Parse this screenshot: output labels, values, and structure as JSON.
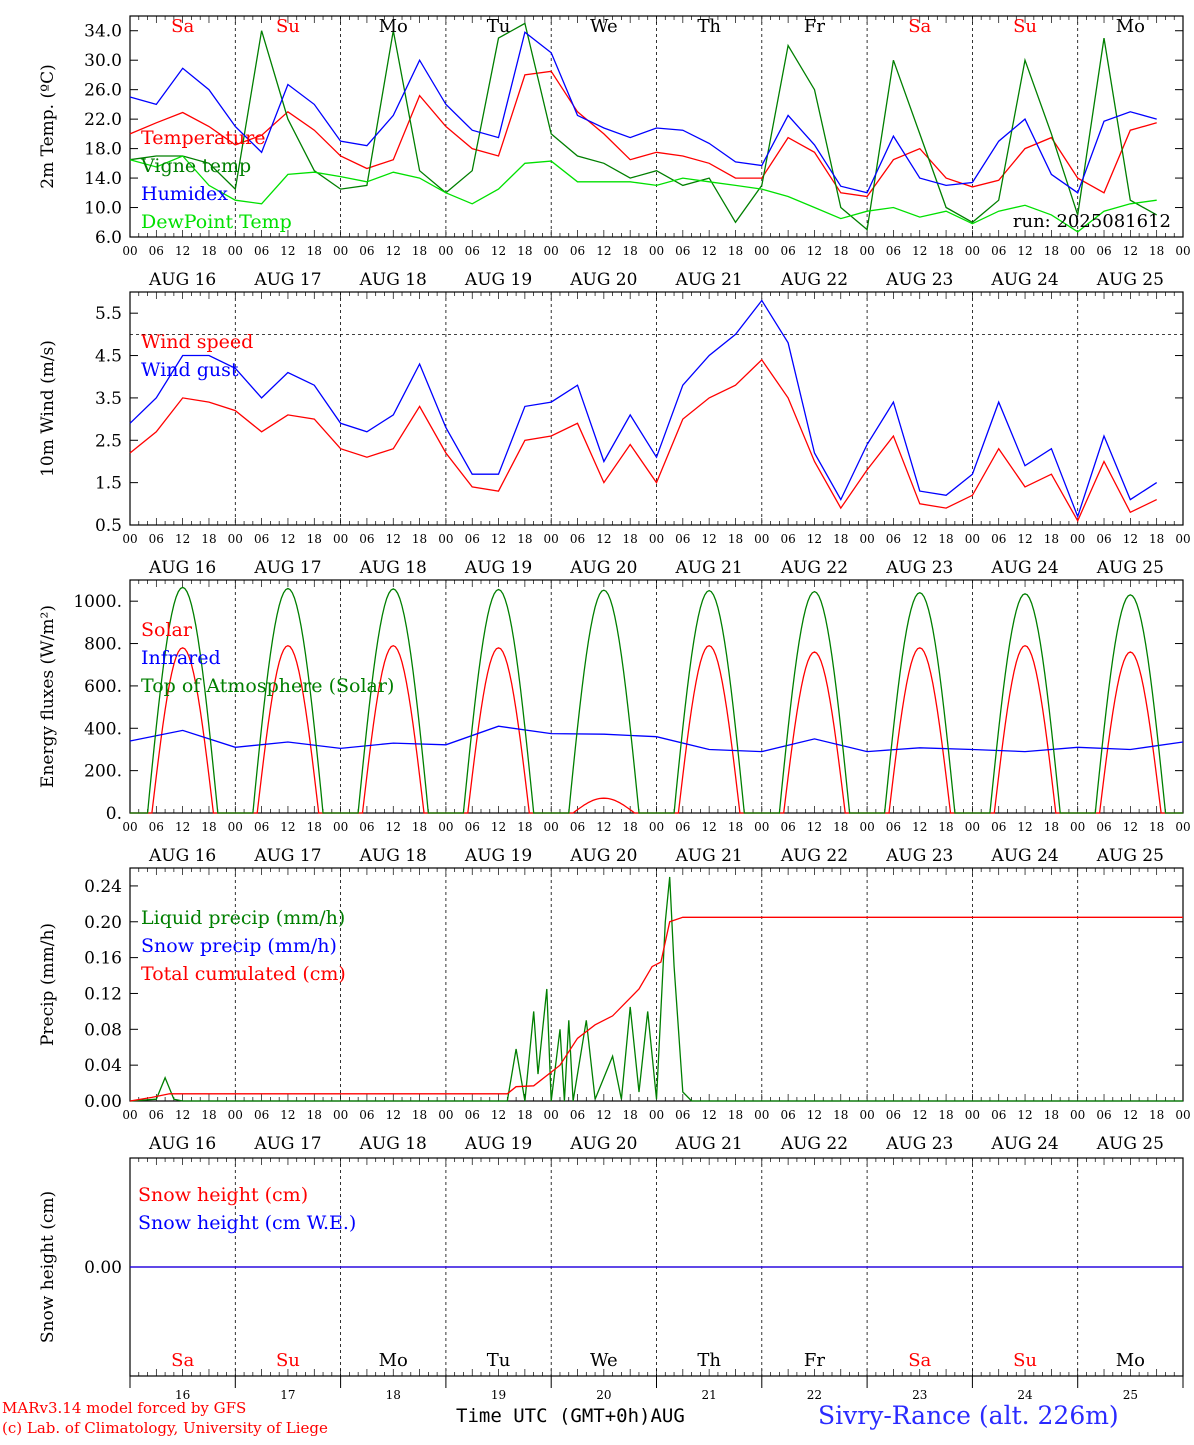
{
  "footer": {
    "model_credit": "MARv3.14 model forced by GFS",
    "lab_credit": "(c) Lab. of Climatology, University of Liege",
    "x_title": "Time UTC (GMT+0h)AUG",
    "station": "Sivry-Rance (alt. 226m)"
  },
  "days": [
    {
      "abbr": "Sa",
      "date": "AUG 16",
      "num": "16",
      "weekend": true
    },
    {
      "abbr": "Su",
      "date": "AUG 17",
      "num": "17",
      "weekend": true
    },
    {
      "abbr": "Mo",
      "date": "AUG 18",
      "num": "18",
      "weekend": false
    },
    {
      "abbr": "Tu",
      "date": "AUG 19",
      "num": "19",
      "weekend": false
    },
    {
      "abbr": "We",
      "date": "AUG 20",
      "num": "20",
      "weekend": false
    },
    {
      "abbr": "Th",
      "date": "AUG 21",
      "num": "21",
      "weekend": false
    },
    {
      "abbr": "Fr",
      "date": "AUG 22",
      "num": "22",
      "weekend": false
    },
    {
      "abbr": "Sa",
      "date": "AUG 23",
      "num": "23",
      "weekend": true
    },
    {
      "abbr": "Su",
      "date": "AUG 24",
      "num": "24",
      "weekend": true
    },
    {
      "abbr": "Mo",
      "date": "AUG 25",
      "num": "25",
      "weekend": false
    }
  ],
  "hour_labels": [
    "00",
    "06",
    "12",
    "18"
  ],
  "colors": {
    "red": "#ff0000",
    "green": "#007f00",
    "blue": "#0000ff",
    "lightgreen": "#00e000",
    "black": "#000000"
  },
  "chart_data": [
    {
      "type": "line",
      "ylabel": "2m Temp. (ºC)",
      "yticks": [
        "6.0",
        "10.0",
        "14.0",
        "18.0",
        "22.0",
        "26.0",
        "30.0",
        "34.0"
      ],
      "ylim": [
        6,
        36
      ],
      "annotation": "run: 2025081612",
      "x_hours": [
        0,
        6,
        12,
        18,
        24,
        30,
        36,
        42,
        48,
        54,
        60,
        66,
        72,
        78,
        84,
        90,
        96,
        102,
        108,
        114,
        120,
        126,
        132,
        138,
        144,
        150,
        156,
        162,
        168,
        174,
        180,
        186,
        192,
        198,
        204,
        210,
        216,
        222,
        228,
        234
      ],
      "series": [
        {
          "name": "Temperature",
          "color": "red",
          "values": [
            20,
            21.5,
            22.9,
            21,
            18.5,
            19.8,
            23,
            20.5,
            17,
            15.3,
            16.5,
            25.2,
            21,
            18,
            17,
            28,
            28.5,
            23,
            20,
            16.5,
            17.5,
            17,
            16,
            14,
            14,
            19.5,
            17.5,
            12,
            11.5,
            16.5,
            18,
            14,
            12.8,
            13.7,
            18,
            19.5,
            14,
            12,
            20.5,
            21.5
          ]
        },
        {
          "name": "Vigne temp",
          "color": "green",
          "values": [
            16.5,
            17,
            17,
            16,
            12.5,
            34,
            22,
            15,
            12.5,
            13,
            34,
            15,
            12,
            15,
            33,
            35,
            20,
            17,
            16,
            14,
            15,
            13,
            14,
            8,
            13,
            32,
            26,
            10,
            7,
            30,
            20,
            10,
            8,
            11,
            30,
            20,
            9,
            33,
            11,
            9
          ]
        },
        {
          "name": "Humidex",
          "color": "blue",
          "values": [
            25,
            24,
            28.9,
            26,
            21,
            17.5,
            26.7,
            24,
            19,
            18.4,
            22.5,
            30,
            24,
            20.5,
            19.5,
            33.8,
            31,
            22.5,
            20.8,
            19.5,
            20.8,
            20.5,
            18.7,
            16.2,
            15.7,
            22.5,
            18.5,
            12.9,
            12,
            19.7,
            14,
            13,
            13.4,
            19,
            22,
            14.5,
            12,
            21.7,
            23,
            22
          ]
        },
        {
          "name": "DewPoint Temp",
          "color": "lightgreen",
          "values": [
            16.5,
            15.5,
            17,
            13,
            11,
            10.5,
            14.5,
            14.8,
            14.2,
            13.5,
            14.8,
            14,
            12,
            10.5,
            12.5,
            16,
            16.3,
            13.5,
            13.5,
            13.5,
            13,
            14,
            13.5,
            13,
            12.5,
            11.5,
            10,
            8.5,
            9.5,
            10,
            8.7,
            9.5,
            7.8,
            9.5,
            10.3,
            9,
            6.7,
            9.5,
            10.5,
            11
          ]
        }
      ]
    },
    {
      "type": "line",
      "ylabel": "10m Wind (m/s)",
      "yticks": [
        "0.5",
        "1.5",
        "2.5",
        "3.5",
        "4.5",
        "5.5"
      ],
      "ylim": [
        0.5,
        6
      ],
      "reference_line": 5.0,
      "x_hours": [
        0,
        6,
        12,
        18,
        24,
        30,
        36,
        42,
        48,
        54,
        60,
        66,
        72,
        78,
        84,
        90,
        96,
        102,
        108,
        114,
        120,
        126,
        132,
        138,
        144,
        150,
        156,
        162,
        168,
        174,
        180,
        186,
        192,
        198,
        204,
        210,
        216,
        222,
        228,
        234
      ],
      "series": [
        {
          "name": "Wind speed",
          "color": "red",
          "values": [
            2.2,
            2.7,
            3.5,
            3.4,
            3.2,
            2.7,
            3.1,
            3.0,
            2.3,
            2.1,
            2.3,
            3.3,
            2.2,
            1.4,
            1.3,
            2.5,
            2.6,
            2.9,
            1.5,
            2.4,
            1.5,
            3.0,
            3.5,
            3.8,
            4.4,
            3.5,
            2.0,
            0.9,
            1.8,
            2.6,
            1.0,
            0.9,
            1.2,
            2.3,
            1.4,
            1.7,
            0.6,
            2.0,
            0.8,
            1.1
          ]
        },
        {
          "name": "Wind gust",
          "color": "blue",
          "values": [
            2.9,
            3.5,
            4.5,
            4.5,
            4.2,
            3.5,
            4.1,
            3.8,
            2.9,
            2.7,
            3.1,
            4.3,
            2.8,
            1.7,
            1.7,
            3.3,
            3.4,
            3.8,
            2.0,
            3.1,
            2.1,
            3.8,
            4.5,
            5.0,
            5.8,
            4.8,
            2.2,
            1.1,
            2.4,
            3.4,
            1.3,
            1.2,
            1.7,
            3.4,
            1.9,
            2.3,
            0.7,
            2.6,
            1.1,
            1.5
          ]
        }
      ]
    },
    {
      "type": "line",
      "ylabel": "Energy fluxes (W/m²)",
      "yticks": [
        "0.",
        "200.",
        "400.",
        "600.",
        "800.",
        "1000."
      ],
      "ylim": [
        0,
        1100
      ],
      "series": [
        {
          "name": "Solar",
          "color": "red",
          "daily_peak": [
            780,
            790,
            790,
            780,
            70,
            790,
            760,
            780,
            790,
            760
          ]
        },
        {
          "name": "Infrared",
          "color": "blue",
          "values": [
            340,
            390,
            310,
            335,
            305,
            330,
            322,
            410,
            375,
            372,
            360,
            300,
            290,
            350,
            290,
            308,
            300,
            290,
            310,
            300,
            335
          ]
        },
        {
          "name": "Top of Atmosphere (Solar)",
          "color": "green",
          "daily_peak": [
            1065,
            1060,
            1058,
            1055,
            1052,
            1050,
            1045,
            1040,
            1035,
            1030
          ]
        }
      ]
    },
    {
      "type": "line",
      "ylabel": "Precip (mm/h)",
      "yticks": [
        "0.00",
        "0.04",
        "0.08",
        "0.12",
        "0.16",
        "0.20",
        "0.24"
      ],
      "ylim": [
        0,
        0.26
      ],
      "series": [
        {
          "name": "Liquid precip (mm/h)",
          "color": "green",
          "points": [
            [
              0,
              0
            ],
            [
              6,
              0.002
            ],
            [
              8,
              0.026
            ],
            [
              10,
              0.002
            ],
            [
              12,
              0
            ],
            [
              86,
              0
            ],
            [
              88,
              0.058
            ],
            [
              90,
              0
            ],
            [
              92,
              0.1
            ],
            [
              93,
              0.03
            ],
            [
              95,
              0.125
            ],
            [
              96,
              0
            ],
            [
              98,
              0.08
            ],
            [
              99,
              0
            ],
            [
              100,
              0.09
            ],
            [
              101,
              0
            ],
            [
              104,
              0.09
            ],
            [
              106,
              0.002
            ],
            [
              110,
              0.05
            ],
            [
              112,
              0.002
            ],
            [
              114,
              0.105
            ],
            [
              116,
              0.01
            ],
            [
              118,
              0.1
            ],
            [
              120,
              0.002
            ],
            [
              122,
              0.2
            ],
            [
              123,
              0.25
            ],
            [
              124,
              0.15
            ],
            [
              126,
              0.01
            ],
            [
              128,
              0
            ],
            [
              240,
              0
            ]
          ]
        },
        {
          "name": "Snow precip (mm/h)",
          "color": "blue",
          "points": []
        },
        {
          "name": "Total cumulated (cm)",
          "color": "red",
          "points": [
            [
              0,
              0
            ],
            [
              5,
              0.004
            ],
            [
              9,
              0.008
            ],
            [
              86,
              0.008
            ],
            [
              88,
              0.016
            ],
            [
              92,
              0.017
            ],
            [
              98,
              0.04
            ],
            [
              102,
              0.07
            ],
            [
              106,
              0.085
            ],
            [
              110,
              0.095
            ],
            [
              113,
              0.11
            ],
            [
              116,
              0.125
            ],
            [
              119,
              0.15
            ],
            [
              121,
              0.155
            ],
            [
              123,
              0.2
            ],
            [
              126,
              0.205
            ],
            [
              240,
              0.205
            ]
          ]
        }
      ]
    },
    {
      "type": "line",
      "ylabel": "Snow height (cm)",
      "yticks": [
        "0.00"
      ],
      "ylim": [
        -1,
        1
      ],
      "series": [
        {
          "name": "Snow height (cm)",
          "color": "red",
          "values": [
            0,
            0
          ]
        },
        {
          "name": "Snow height (cm W.E.)",
          "color": "blue",
          "values": [
            0,
            0
          ]
        }
      ]
    }
  ]
}
